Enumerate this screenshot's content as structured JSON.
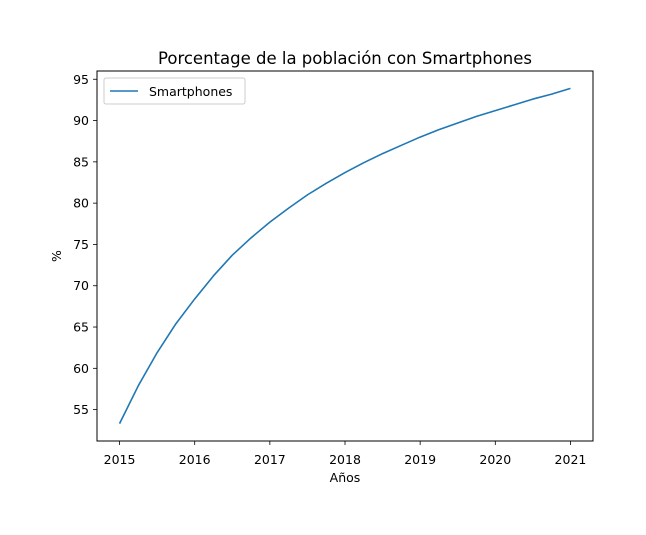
{
  "chart_data": {
    "type": "line",
    "title": "Porcentage de la población con Smartphones",
    "xlabel": "Años",
    "ylabel": "%",
    "xlim": [
      2014.7,
      2021.3
    ],
    "ylim": [
      51.2,
      96.0
    ],
    "xticks": [
      2015,
      2016,
      2017,
      2018,
      2019,
      2020,
      2021
    ],
    "yticks": [
      55,
      60,
      65,
      70,
      75,
      80,
      85,
      90,
      95
    ],
    "legend": {
      "placement": "upper-left"
    },
    "grid": false,
    "series": [
      {
        "name": "Smartphones",
        "color": "#1f77b4",
        "x": [
          2015.0,
          2015.25,
          2015.5,
          2015.75,
          2016.0,
          2016.25,
          2016.5,
          2016.75,
          2017.0,
          2017.25,
          2017.5,
          2017.75,
          2018.0,
          2018.25,
          2018.5,
          2018.75,
          2019.0,
          2019.25,
          2019.5,
          2019.75,
          2020.0,
          2020.25,
          2020.5,
          2020.75,
          2021.0
        ],
        "y": [
          53.3,
          57.9,
          61.9,
          65.4,
          68.4,
          71.2,
          73.7,
          75.8,
          77.7,
          79.4,
          81.0,
          82.4,
          83.7,
          84.9,
          86.0,
          87.0,
          88.0,
          88.9,
          89.7,
          90.5,
          91.2,
          91.9,
          92.6,
          93.2,
          93.9
        ]
      }
    ]
  }
}
